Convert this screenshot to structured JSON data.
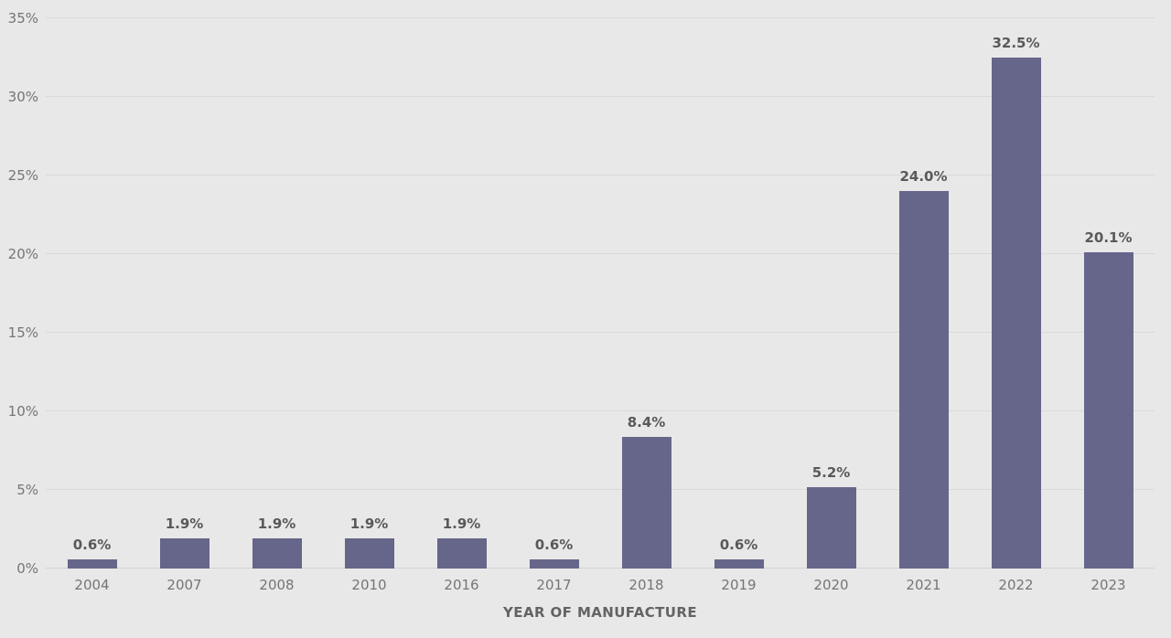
{
  "chart_data": {
    "type": "bar",
    "title": "",
    "categories": [
      "2004",
      "2007",
      "2008",
      "2010",
      "2016",
      "2017",
      "2018",
      "2019",
      "2020",
      "2021",
      "2022",
      "2023"
    ],
    "values": [
      0.6,
      1.9,
      1.9,
      1.9,
      1.9,
      0.6,
      8.4,
      0.6,
      5.2,
      24.0,
      32.5,
      20.1
    ],
    "value_labels": [
      "0.6%",
      "1.9%",
      "1.9%",
      "1.9%",
      "1.9%",
      "0.6%",
      "8.4%",
      "0.6%",
      "5.2%",
      "24.0%",
      "32.5%",
      "20.1%"
    ],
    "xlabel": "YEAR OF MANUFACTURE",
    "ylabel": "",
    "ylim": [
      0,
      35
    ],
    "yticks": [
      0,
      5,
      10,
      15,
      20,
      25,
      30,
      35
    ],
    "ytick_labels": [
      "0%",
      "5%",
      "10%",
      "15%",
      "20%",
      "25%",
      "30%",
      "35%"
    ],
    "grid": "horizontal",
    "legend": "none",
    "colors": {
      "bar": "#66658A",
      "background": "#E8E8E8",
      "gridline": "#D9D9D9",
      "axis_tick_text": "#757575",
      "value_label_text": "#595959",
      "axis_title_text": "#636363"
    }
  }
}
